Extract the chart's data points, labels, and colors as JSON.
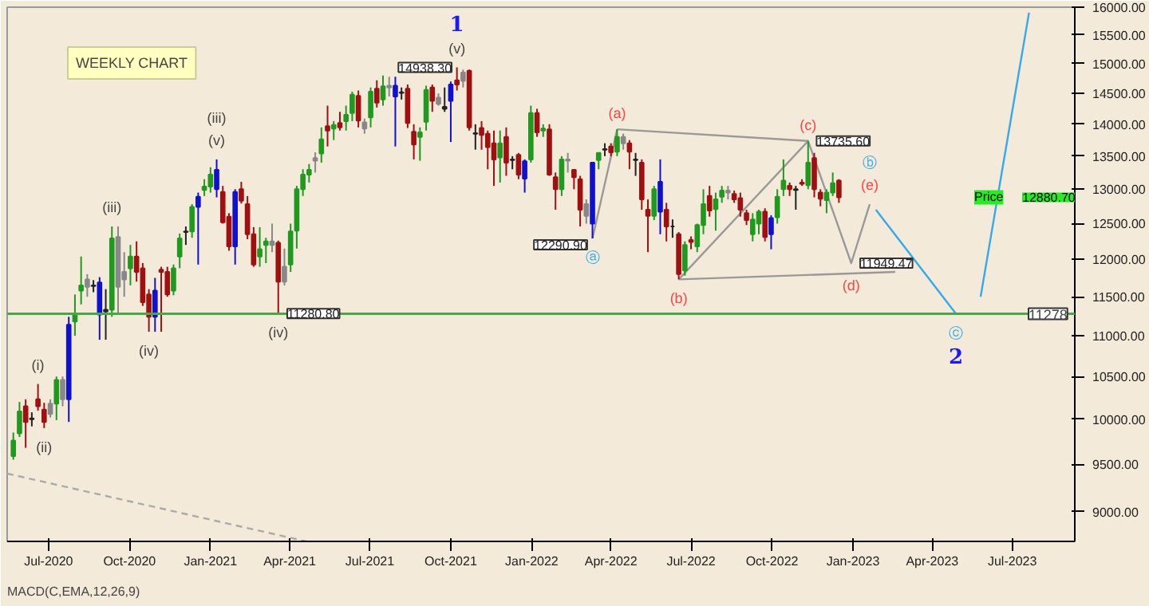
{
  "chart_data": {
    "type": "candlestick",
    "x": [
      "2020-05-22",
      "2020-05-29",
      "2020-06-05",
      "2020-06-12",
      "2020-06-19",
      "2020-06-26",
      "2020-07-03",
      "2020-07-10",
      "2020-07-17",
      "2020-07-24",
      "2020-07-31",
      "2020-08-07",
      "2020-08-14",
      "2020-08-21",
      "2020-08-28",
      "2020-09-04",
      "2020-09-11",
      "2020-09-18",
      "2020-09-25",
      "2020-10-02",
      "2020-10-09",
      "2020-10-16",
      "2020-10-23",
      "2020-10-30",
      "2020-11-06",
      "2020-11-13",
      "2020-11-20",
      "2020-11-27",
      "2020-12-04",
      "2020-12-11",
      "2020-12-18",
      "2020-12-25",
      "2021-01-01",
      "2021-01-08",
      "2021-01-15",
      "2021-01-22",
      "2021-01-29",
      "2021-02-05",
      "2021-02-12",
      "2021-02-19",
      "2021-02-26",
      "2021-03-05",
      "2021-03-12",
      "2021-03-19",
      "2021-03-26",
      "2021-04-02",
      "2021-04-09",
      "2021-04-16",
      "2021-04-23",
      "2021-04-30",
      "2021-05-07",
      "2021-05-14",
      "2021-05-21",
      "2021-05-28",
      "2021-06-04",
      "2021-06-11",
      "2021-06-18",
      "2021-06-25",
      "2021-07-02",
      "2021-07-09",
      "2021-07-16",
      "2021-07-23",
      "2021-07-30",
      "2021-08-06",
      "2021-08-13",
      "2021-08-20",
      "2021-08-27",
      "2021-09-03",
      "2021-09-10",
      "2021-09-17",
      "2021-09-24",
      "2021-10-01",
      "2021-10-08",
      "2021-10-15",
      "2021-10-22",
      "2021-10-29",
      "2021-11-05",
      "2021-11-12",
      "2021-11-19",
      "2021-11-26",
      "2021-12-03",
      "2021-12-10",
      "2021-12-17",
      "2021-12-24",
      "2021-12-31",
      "2022-01-07",
      "2022-01-14",
      "2022-01-21",
      "2022-01-28",
      "2022-02-04",
      "2022-02-11",
      "2022-02-18",
      "2022-02-25",
      "2022-03-04",
      "2022-03-11",
      "2022-03-18",
      "2022-03-25",
      "2022-04-01",
      "2022-04-08",
      "2022-04-15",
      "2022-04-22",
      "2022-04-29",
      "2022-05-06",
      "2022-05-13",
      "2022-05-20",
      "2022-05-27",
      "2022-06-03",
      "2022-06-10",
      "2022-06-17",
      "2022-06-24",
      "2022-07-01",
      "2022-07-08",
      "2022-07-15",
      "2022-07-22",
      "2022-07-29",
      "2022-08-05",
      "2022-08-12",
      "2022-08-19",
      "2022-08-26",
      "2022-09-02",
      "2022-09-09",
      "2022-09-16",
      "2022-09-23",
      "2022-09-30",
      "2022-10-07",
      "2022-10-14",
      "2022-10-21",
      "2022-10-28",
      "2022-11-04",
      "2022-11-11",
      "2022-11-18",
      "2022-11-25",
      "2022-12-02",
      "2022-12-09",
      "2022-12-16"
    ],
    "ohlc": [
      [
        9590,
        9850,
        9550,
        9760
      ],
      [
        9840,
        10200,
        9800,
        10090
      ],
      [
        10150,
        10230,
        9680,
        9970
      ],
      [
        10000,
        10080,
        9920,
        10010
      ],
      [
        10230,
        10410,
        10100,
        10150
      ],
      [
        10110,
        10190,
        9900,
        9970
      ],
      [
        10060,
        10230,
        10020,
        10180
      ],
      [
        10180,
        10500,
        9990,
        10460
      ],
      [
        10230,
        10500,
        10150,
        10460
      ],
      [
        10230,
        11240,
        9970,
        11140
      ],
      [
        11180,
        11530,
        11000,
        11280
      ],
      [
        11580,
        12040,
        11400,
        11650
      ],
      [
        11730,
        11800,
        11500,
        11630
      ],
      [
        11650,
        11720,
        11560,
        11640
      ],
      [
        11690,
        11760,
        10950,
        11270
      ],
      [
        11330,
        11600,
        10950,
        11310
      ],
      [
        11330,
        12460,
        11240,
        12290
      ],
      [
        12310,
        12460,
        11280,
        11630
      ],
      [
        11830,
        12100,
        11500,
        11730
      ],
      [
        11880,
        12200,
        11650,
        12040
      ],
      [
        12040,
        12250,
        11700,
        11830
      ],
      [
        11880,
        11950,
        11380,
        11430
      ],
      [
        11530,
        11600,
        11050,
        11240
      ],
      [
        11240,
        11750,
        11050,
        11580
      ],
      [
        11860,
        11900,
        11050,
        11830
      ],
      [
        11830,
        11900,
        11500,
        11530
      ],
      [
        11580,
        11930,
        11520,
        11880
      ],
      [
        12040,
        12360,
        11880,
        12290
      ],
      [
        12380,
        12460,
        12200,
        12390
      ],
      [
        12390,
        12780,
        12300,
        12740
      ],
      [
        12740,
        12950,
        11930,
        12890
      ],
      [
        12990,
        13150,
        12900,
        13040
      ],
      [
        13040,
        13330,
        12950,
        13220
      ],
      [
        13000,
        13450,
        12880,
        13290
      ],
      [
        12960,
        13050,
        12500,
        12520
      ],
      [
        12600,
        12650,
        12120,
        12180
      ],
      [
        12180,
        13000,
        11930,
        12960
      ],
      [
        13000,
        13110,
        12790,
        12830
      ],
      [
        12780,
        12900,
        12280,
        12350
      ],
      [
        12350,
        12450,
        11900,
        11930
      ],
      [
        12040,
        12450,
        11900,
        12140
      ],
      [
        12200,
        12300,
        11950,
        12250
      ],
      [
        12250,
        12500,
        12100,
        12200
      ],
      [
        12230,
        12260,
        11280.8,
        11700
      ],
      [
        11700,
        12150,
        11650,
        11900
      ],
      [
        11930,
        12500,
        11830,
        12390
      ],
      [
        12400,
        13050,
        12150,
        13000
      ],
      [
        13000,
        13300,
        12900,
        13220
      ],
      [
        13220,
        13380,
        13100,
        13290
      ],
      [
        13430,
        13560,
        13250,
        13470
      ],
      [
        13540,
        13950,
        13400,
        13760
      ],
      [
        13970,
        14300,
        13650,
        13900
      ],
      [
        13930,
        14050,
        13750,
        13990
      ],
      [
        14020,
        14200,
        13900,
        13950
      ],
      [
        14050,
        14300,
        13900,
        14150
      ],
      [
        14180,
        14530,
        14050,
        14480
      ],
      [
        14460,
        14550,
        13950,
        14060
      ],
      [
        14030,
        14090,
        13850,
        13930
      ],
      [
        14110,
        14600,
        13950,
        14530
      ],
      [
        14580,
        14720,
        14270,
        14350
      ],
      [
        14400,
        14800,
        14300,
        14620
      ],
      [
        14600,
        14780,
        14450,
        14630
      ],
      [
        14630,
        14780,
        13650,
        14450
      ],
      [
        14520,
        14600,
        14400,
        14510
      ],
      [
        14580,
        14650,
        13940,
        14020
      ],
      [
        13880,
        14000,
        13450,
        13680
      ],
      [
        13800,
        13950,
        13430,
        13870
      ],
      [
        14040,
        14630,
        13900,
        14560
      ],
      [
        14600,
        14650,
        14200,
        14380
      ],
      [
        14430,
        14500,
        14300,
        14330
      ],
      [
        14250,
        14600,
        14200,
        14280
      ],
      [
        14380,
        14700,
        13720,
        14650
      ],
      [
        14720,
        14938.3,
        14550,
        14650
      ],
      [
        14710,
        14900,
        14600,
        14850
      ],
      [
        14880,
        14900,
        13900,
        13950
      ],
      [
        13850,
        14000,
        13600,
        13860
      ],
      [
        13940,
        14050,
        13600,
        13830
      ],
      [
        13850,
        13900,
        13300,
        13640
      ],
      [
        13700,
        13900,
        13050,
        13450
      ],
      [
        13480,
        13900,
        13100,
        13700
      ],
      [
        13800,
        13950,
        13200,
        13400
      ],
      [
        13450,
        13500,
        13300,
        13440
      ],
      [
        13520,
        13550,
        13150,
        13220
      ],
      [
        13160,
        13450,
        12950,
        13420
      ],
      [
        13450,
        14300,
        13400,
        14180
      ],
      [
        14180,
        14250,
        13800,
        13870
      ],
      [
        13900,
        14000,
        13800,
        13930
      ],
      [
        13920,
        14000,
        13200,
        13220
      ],
      [
        13180,
        13250,
        12700,
        13000
      ],
      [
        13000,
        13500,
        12900,
        13450
      ],
      [
        13450,
        13550,
        13250,
        13430
      ],
      [
        13290,
        13300,
        13000,
        13180
      ],
      [
        13150,
        13200,
        12460,
        12700
      ],
      [
        12610,
        12850,
        12500,
        12780
      ],
      [
        12500,
        13400,
        12290.9,
        13400
      ],
      [
        13440,
        13550,
        13300,
        13550
      ],
      [
        13600,
        13700,
        13500,
        13610
      ],
      [
        13650,
        13700,
        13500,
        13560
      ],
      [
        13570,
        13920,
        13500,
        13800
      ],
      [
        13800,
        13850,
        13600,
        13700
      ],
      [
        13700,
        13750,
        13300,
        13570
      ],
      [
        13450,
        13550,
        13200,
        13440
      ],
      [
        13400,
        13450,
        12700,
        12850
      ],
      [
        12700,
        12850,
        12100,
        12610
      ],
      [
        12610,
        13050,
        12550,
        13000
      ],
      [
        12670,
        13450,
        12350,
        13110
      ],
      [
        12700,
        12800,
        12250,
        12460
      ],
      [
        12460,
        12560,
        12300,
        12460
      ],
      [
        12350,
        12380,
        11730,
        11800
      ],
      [
        11850,
        12250,
        11780,
        12200
      ],
      [
        12270,
        12320,
        12140,
        12240
      ],
      [
        12180,
        12500,
        12100,
        12480
      ],
      [
        12480,
        13000,
        12350,
        12780
      ],
      [
        12900,
        13050,
        12600,
        12690
      ],
      [
        12710,
        12950,
        12400,
        12850
      ],
      [
        12890,
        13050,
        12800,
        12980
      ],
      [
        12950,
        13050,
        12850,
        12980
      ],
      [
        12930,
        12980,
        12800,
        12850
      ],
      [
        12870,
        12950,
        12600,
        12700
      ],
      [
        12650,
        12700,
        12480,
        12550
      ],
      [
        12350,
        12650,
        12250,
        12560
      ],
      [
        12500,
        12700,
        12350,
        12670
      ],
      [
        12670,
        12720,
        12250,
        12310
      ],
      [
        12350,
        12620,
        12140,
        12580
      ],
      [
        12590,
        13000,
        12500,
        12890
      ],
      [
        13000,
        13450,
        12900,
        13130
      ],
      [
        13050,
        13100,
        12900,
        13000
      ],
      [
        12990,
        13050,
        12700,
        13000
      ],
      [
        13100,
        13150,
        13050,
        13080
      ],
      [
        13060,
        13735.6,
        13000,
        13400
      ],
      [
        13470,
        13550,
        12880,
        13000
      ],
      [
        12950,
        13000,
        12750,
        12860
      ],
      [
        12840,
        13000,
        12650,
        12950
      ],
      [
        12950,
        13250,
        12900,
        13090
      ],
      [
        13130,
        13150,
        12800,
        12880.7
      ]
    ],
    "colors": [
      "#1f9a1f",
      "#1f9a1f",
      "#a01010",
      "#222222",
      "#a01010",
      "#a01010",
      "#888888",
      "#1f9a1f",
      "#888888",
      "#1010d0",
      "#1f9a1f",
      "#1f9a1f",
      "#888888",
      "#222222",
      "#1010d0",
      "#222222",
      "#1f9a1f",
      "#888888",
      "#888888",
      "#1f9a1f",
      "#a01010",
      "#a01010",
      "#a01010",
      "#1010d0",
      "#a01010",
      "#a01010",
      "#1f9a1f",
      "#1f9a1f",
      "#222222",
      "#1f9a1f",
      "#1010d0",
      "#1f9a1f",
      "#1f9a1f",
      "#1010d0",
      "#a01010",
      "#a01010",
      "#1010d0",
      "#a01010",
      "#a01010",
      "#a01010",
      "#1f9a1f",
      "#1f9a1f",
      "#888888",
      "#a01010",
      "#888888",
      "#1f9a1f",
      "#1f9a1f",
      "#1f9a1f",
      "#1f9a1f",
      "#888888",
      "#1f9a1f",
      "#a01010",
      "#1f9a1f",
      "#a01010",
      "#1f9a1f",
      "#1f9a1f",
      "#a01010",
      "#888888",
      "#1f9a1f",
      "#a01010",
      "#1f9a1f",
      "#888888",
      "#1010d0",
      "#222222",
      "#a01010",
      "#a01010",
      "#1f9a1f",
      "#1f9a1f",
      "#a01010",
      "#888888",
      "#222222",
      "#1010d0",
      "#a01010",
      "#888888",
      "#a01010",
      "#222222",
      "#a01010",
      "#a01010",
      "#a01010",
      "#1f9a1f",
      "#a01010",
      "#222222",
      "#a01010",
      "#1010d0",
      "#1f9a1f",
      "#a01010",
      "#1f9a1f",
      "#a01010",
      "#a01010",
      "#1f9a1f",
      "#888888",
      "#a01010",
      "#a01010",
      "#888888",
      "#1010d0",
      "#1f9a1f",
      "#222222",
      "#a01010",
      "#1f9a1f",
      "#888888",
      "#a01010",
      "#222222",
      "#a01010",
      "#a01010",
      "#1f9a1f",
      "#1010d0",
      "#a01010",
      "#222222",
      "#a01010",
      "#1f9a1f",
      "#a01010",
      "#1f9a1f",
      "#1f9a1f",
      "#a01010",
      "#1f9a1f",
      "#1f9a1f",
      "#888888",
      "#a01010",
      "#a01010",
      "#a01010",
      "#1f9a1f",
      "#1f9a1f",
      "#a01010",
      "#1010d0",
      "#1f9a1f",
      "#1f9a1f",
      "#a01010",
      "#222222",
      "#a01010",
      "#1f9a1f",
      "#a01010",
      "#a01010",
      "#1f9a1f",
      "#1f9a1f",
      "#a01010"
    ],
    "series": [
      {
        "type": "line",
        "color": "#999999",
        "line_style": "solid",
        "x": [
          "2022-03-11",
          "2022-04-08"
        ],
        "values": [
          12290.9,
          13920
        ]
      },
      {
        "type": "line",
        "color": "#999999",
        "line_style": "solid",
        "x": [
          "2022-04-08",
          "2022-11-11"
        ],
        "values": [
          13920,
          13735.6
        ]
      },
      {
        "type": "line",
        "color": "#999999",
        "line_style": "solid",
        "x": [
          "2022-06-17",
          "2023-02-18"
        ],
        "values": [
          11730,
          11830
        ]
      },
      {
        "type": "line",
        "color": "#999999",
        "line_style": "solid",
        "x": [
          "2022-06-17",
          "2022-11-11",
          "2022-12-30",
          "2023-01-20"
        ],
        "values": [
          11730,
          13735.6,
          11949.47,
          12780
        ]
      },
      {
        "type": "line",
        "color": "#33aaee",
        "line_style": "solid",
        "x": [
          "2023-01-27",
          "2023-04-28"
        ],
        "values": [
          12700,
          11278
        ]
      },
      {
        "type": "line",
        "color": "#33aaee",
        "line_style": "solid",
        "x": [
          "2023-05-26",
          "2023-07-20"
        ],
        "values": [
          11500,
          15900
        ]
      },
      {
        "type": "line",
        "color": "#aaaaaa",
        "line_style": "dashed",
        "x": [
          "2020-05-15",
          "2021-04-20"
        ],
        "values": [
          9400,
          8700
        ]
      }
    ],
    "xlim": [
      "2020-05-15",
      "2023-09-10"
    ],
    "xticks": [
      {
        "value": "2020-07-01",
        "label": "Jul-2020"
      },
      {
        "value": "2020-10-01",
        "label": "Oct-2020"
      },
      {
        "value": "2021-01-01",
        "label": "Jan-2021"
      },
      {
        "value": "2021-04-01",
        "label": "Apr-2021"
      },
      {
        "value": "2021-07-01",
        "label": "Jul-2021"
      },
      {
        "value": "2021-10-01",
        "label": "Oct-2021"
      },
      {
        "value": "2022-01-01",
        "label": "Jan-2022"
      },
      {
        "value": "2022-04-01",
        "label": "Apr-2022"
      },
      {
        "value": "2022-07-01",
        "label": "Jul-2022"
      },
      {
        "value": "2022-10-01",
        "label": "Oct-2022"
      },
      {
        "value": "2023-01-01",
        "label": "Jan-2023"
      },
      {
        "value": "2023-04-01",
        "label": "Apr-2023"
      },
      {
        "value": "2023-07-01",
        "label": "Jul-2023"
      }
    ],
    "ylim": [
      8700,
      16000
    ],
    "yticks": [
      {
        "value": 9000,
        "label": "9000.00"
      },
      {
        "value": 9500,
        "label": "9500.00"
      },
      {
        "value": 10000,
        "label": "10000.00"
      },
      {
        "value": 10500,
        "label": "10500.00"
      },
      {
        "value": 11000,
        "label": "11000.00"
      },
      {
        "value": 11500,
        "label": "11500.00"
      },
      {
        "value": 12000,
        "label": "12000.00"
      },
      {
        "value": 12500,
        "label": "12500.00"
      },
      {
        "value": 13000,
        "label": "13000.00"
      },
      {
        "value": 13500,
        "label": "13500.00"
      },
      {
        "value": 14000,
        "label": "14000.00"
      },
      {
        "value": 14500,
        "label": "14500.00"
      },
      {
        "value": 15000,
        "label": "15000.00"
      },
      {
        "value": 15500,
        "label": "15500.00"
      },
      {
        "value": 16000,
        "label": "16000.00"
      }
    ],
    "log": true,
    "grid": false,
    "ref_lines": [
      {
        "axis": "y",
        "value": 11278,
        "label": "11278",
        "color": "#44aa44"
      }
    ],
    "annotations": [
      "WEEKLY CHART",
      "Price",
      "12880.70",
      "MACD(C,EMA,12,26,9)",
      {
        "text": "(i)",
        "x": "2020-06-19",
        "y": 10410
      },
      {
        "text": "(ii)",
        "x": "2020-06-26",
        "y": 9900
      },
      {
        "text": "(iii)",
        "x": "2020-09-11",
        "y": 12460
      },
      {
        "text": "(iv)",
        "x": "2020-10-23",
        "y": 11050
      },
      {
        "text": "(iii)",
        "x": "2021-01-08",
        "y": 13450
      },
      {
        "text": "(v)",
        "x": "2021-01-08",
        "y": 13450
      },
      {
        "text": "(iv)",
        "x": "2021-03-19",
        "y": 11280.8
      },
      {
        "text": "(v)",
        "x": "2021-10-08",
        "y": 14938.3
      },
      {
        "text": "1",
        "x": "2021-10-08",
        "y": 14938.3
      },
      {
        "text": "ⓐ",
        "x": "2022-03-11",
        "y": 12290.9
      },
      {
        "text": "(a)",
        "x": "2022-04-08",
        "y": 13920
      },
      {
        "text": "(b)",
        "x": "2022-06-17",
        "y": 11730
      },
      {
        "text": "(c)",
        "x": "2022-11-11",
        "y": 13735.6
      },
      {
        "text": "ⓑ",
        "x": "2023-01-20",
        "y": 12780
      },
      {
        "text": "(e)",
        "x": "2023-01-20",
        "y": 12780
      },
      {
        "text": "(d)",
        "x": "2022-12-30",
        "y": 11949.47
      },
      {
        "text": "ⓒ",
        "x": "2023-04-28",
        "y": 11278
      },
      {
        "text": "2",
        "x": "2023-04-28",
        "y": 11278
      },
      {
        "text": "14938.30",
        "x": "2021-10-08",
        "y": 14938.3
      },
      {
        "text": "11280.80",
        "x": "2021-03-19",
        "y": 11280.8
      },
      {
        "text": "12290.90",
        "x": "2022-03-11",
        "y": 12290.9
      },
      {
        "text": "13735.60",
        "x": "2022-11-11",
        "y": 13735.6
      },
      {
        "text": "11949.47",
        "x": "2022-12-30",
        "y": 11949.47
      }
    ]
  }
}
